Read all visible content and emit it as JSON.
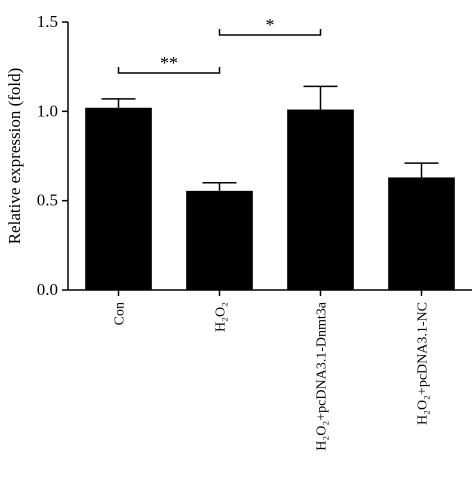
{
  "chart_data": {
    "type": "bar",
    "y_label": "Relative expression (fold)",
    "categories": [
      "Con",
      "H₂O₂",
      "H₂O₂+pcDNA3.1-Dnmt3a",
      "H₂O₂+pcDNA3.1-NC"
    ],
    "values": [
      1.02,
      0.555,
      1.01,
      0.63
    ],
    "errors": [
      0.05,
      0.045,
      0.13,
      0.08
    ],
    "color": "#000000",
    "ylim": [
      0,
      1.5
    ],
    "yticks": [
      {
        "value": 0,
        "label": "0.0"
      },
      {
        "value": 0.5,
        "label": "0.5"
      },
      {
        "value": 1,
        "label": "1.0"
      },
      {
        "value": 1.5,
        "label": "1.5"
      }
    ],
    "annotations": [
      {
        "text": "**",
        "categories_index": [
          0,
          1
        ]
      },
      {
        "text": "*",
        "categories_index": [
          1,
          2
        ]
      }
    ]
  }
}
